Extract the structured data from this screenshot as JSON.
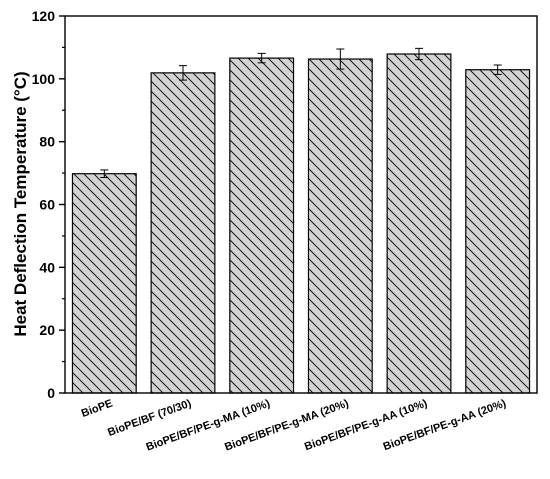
{
  "chart_data": {
    "type": "bar",
    "title": "",
    "xlabel": "",
    "ylabel": "Heat Deflection Temperature (°C)",
    "ylim": [
      0,
      120
    ],
    "yticks": [
      0,
      20,
      40,
      60,
      80,
      100,
      120
    ],
    "categories": [
      "BioPE",
      "BioPE/BF (70/30)",
      "BioPE/BF/PE-g-MA (10%)",
      "BioPE/BF/PE-g-MA (20%)",
      "BioPE/BF/PE-g-AA (10%)",
      "BioPE/BF/PE-g-AA (20%)"
    ],
    "values": [
      69.8,
      101.9,
      106.6,
      106.3,
      107.9,
      102.9
    ],
    "errors": [
      1.2,
      2.3,
      1.5,
      3.2,
      1.8,
      1.5
    ],
    "bar_fill": "#d3d3d3",
    "bar_hatch": "diagonal",
    "grid": false,
    "legend": "none"
  }
}
